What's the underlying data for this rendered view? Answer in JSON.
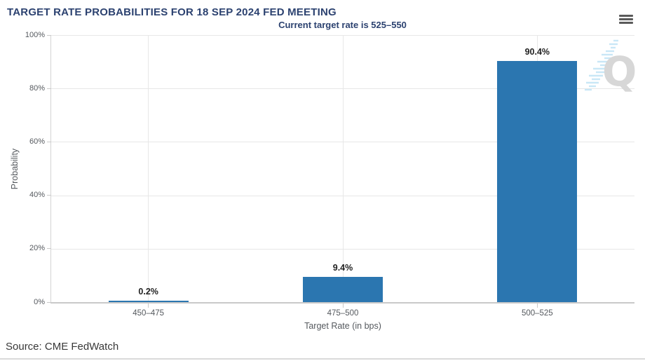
{
  "header": {
    "menu_icon": "hamburger-icon"
  },
  "chart_data": {
    "type": "bar",
    "title": "TARGET RATE PROBABILITIES FOR 18 SEP 2024 FED MEETING",
    "subtitle": "Current target rate is 525–550",
    "categories": [
      "450–475",
      "475–500",
      "500–525"
    ],
    "values": [
      0.2,
      9.4,
      90.4
    ],
    "value_labels": [
      "0.2%",
      "9.4%",
      "90.4%"
    ],
    "xlabel": "Target Rate (in bps)",
    "ylabel": "Probability",
    "ylim": [
      0,
      100
    ],
    "ytick_values": [
      0,
      20,
      40,
      60,
      80,
      100
    ],
    "ytick_labels": [
      "0%",
      "20%",
      "40%",
      "60%",
      "80%",
      "100%"
    ],
    "grid": true,
    "legend": "none",
    "bar_color": "#2b76b0"
  },
  "watermark": {
    "letter": "Q"
  },
  "footer": {
    "source": "Source: CME FedWatch"
  },
  "colors": {
    "title": "#2c4270",
    "bar": "#2b76b0",
    "axis_text": "#55595e",
    "gridline": "#e7e7e7",
    "axis_line": "#c9c9c9",
    "menu_icon": "#5a5a5a",
    "watermark_gray": "#d7d7d7",
    "watermark_blue": "#c9e7f6",
    "source_text": "#383838"
  }
}
